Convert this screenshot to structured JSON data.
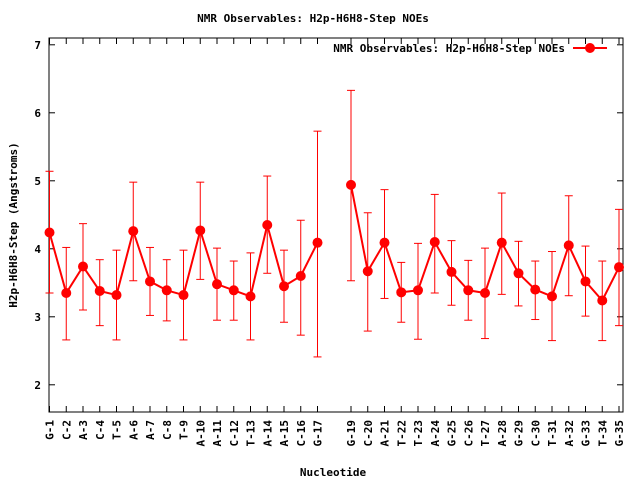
{
  "chart_data": {
    "type": "line",
    "title": "NMR Observables: H2p-H6H8-Step NOEs",
    "xlabel": "Nucleotide",
    "ylabel": "H2p-H6H8-Step (Angstroms)",
    "ylim": [
      1.6,
      7.1
    ],
    "yticks": [
      2,
      3,
      4,
      5,
      6,
      7
    ],
    "legend_position": "top-right",
    "grid": false,
    "series": [
      {
        "name": "NMR Observables: H2p-H6H8-Step NOEs",
        "color": "#ff0000",
        "marker": "circle",
        "points": [
          {
            "label": "G-1",
            "y": 4.24,
            "lo": 3.35,
            "hi": 5.14
          },
          {
            "label": "C-2",
            "y": 3.35,
            "lo": 2.66,
            "hi": 4.02
          },
          {
            "label": "A-3",
            "y": 3.74,
            "lo": 3.1,
            "hi": 4.37
          },
          {
            "label": "C-4",
            "y": 3.38,
            "lo": 2.87,
            "hi": 3.84
          },
          {
            "label": "T-5",
            "y": 3.32,
            "lo": 2.66,
            "hi": 3.98
          },
          {
            "label": "A-6",
            "y": 4.26,
            "lo": 3.53,
            "hi": 4.98
          },
          {
            "label": "A-7",
            "y": 3.52,
            "lo": 3.02,
            "hi": 4.02
          },
          {
            "label": "C-8",
            "y": 3.39,
            "lo": 2.94,
            "hi": 3.84
          },
          {
            "label": "T-9",
            "y": 3.32,
            "lo": 2.66,
            "hi": 3.98
          },
          {
            "label": "A-10",
            "y": 4.27,
            "lo": 3.55,
            "hi": 4.98
          },
          {
            "label": "A-11",
            "y": 3.48,
            "lo": 2.95,
            "hi": 4.01
          },
          {
            "label": "C-12",
            "y": 3.39,
            "lo": 2.95,
            "hi": 3.82
          },
          {
            "label": "T-13",
            "y": 3.3,
            "lo": 2.66,
            "hi": 3.94
          },
          {
            "label": "A-14",
            "y": 4.35,
            "lo": 3.64,
            "hi": 5.07
          },
          {
            "label": "A-15",
            "y": 3.45,
            "lo": 2.92,
            "hi": 3.98
          },
          {
            "label": "C-16",
            "y": 3.6,
            "lo": 2.73,
            "hi": 4.42
          },
          {
            "label": "G-17",
            "y": 4.09,
            "lo": 2.41,
            "hi": 5.73
          },
          {
            "label": "G-19",
            "y": 4.94,
            "lo": 3.53,
            "hi": 6.33
          },
          {
            "label": "C-20",
            "y": 3.67,
            "lo": 2.79,
            "hi": 4.53
          },
          {
            "label": "A-21",
            "y": 4.09,
            "lo": 3.27,
            "hi": 4.87
          },
          {
            "label": "T-22",
            "y": 3.36,
            "lo": 2.92,
            "hi": 3.8
          },
          {
            "label": "T-23",
            "y": 3.39,
            "lo": 2.67,
            "hi": 4.08
          },
          {
            "label": "A-24",
            "y": 4.1,
            "lo": 3.35,
            "hi": 4.8
          },
          {
            "label": "G-25",
            "y": 3.66,
            "lo": 3.17,
            "hi": 4.12
          },
          {
            "label": "C-26",
            "y": 3.39,
            "lo": 2.95,
            "hi": 3.83
          },
          {
            "label": "T-27",
            "y": 3.35,
            "lo": 2.68,
            "hi": 4.01
          },
          {
            "label": "A-28",
            "y": 4.09,
            "lo": 3.33,
            "hi": 4.82
          },
          {
            "label": "G-29",
            "y": 3.64,
            "lo": 3.16,
            "hi": 4.11
          },
          {
            "label": "C-30",
            "y": 3.4,
            "lo": 2.96,
            "hi": 3.82
          },
          {
            "label": "T-31",
            "y": 3.3,
            "lo": 2.65,
            "hi": 3.96
          },
          {
            "label": "A-32",
            "y": 4.05,
            "lo": 3.31,
            "hi": 4.78
          },
          {
            "label": "G-33",
            "y": 3.52,
            "lo": 3.01,
            "hi": 4.04
          },
          {
            "label": "T-34",
            "y": 3.24,
            "lo": 2.65,
            "hi": 3.82
          },
          {
            "label": "G-35",
            "y": 3.73,
            "lo": 2.87,
            "hi": 4.58
          }
        ]
      }
    ]
  }
}
